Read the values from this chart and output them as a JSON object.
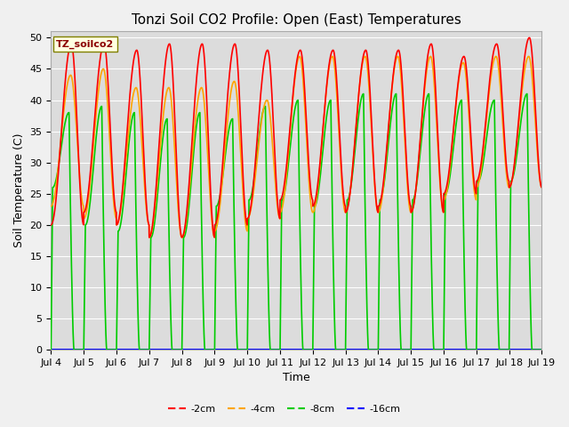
{
  "title": "Tonzi Soil CO2 Profile: Open (East) Temperatures",
  "xlabel": "Time",
  "ylabel": "Soil Temperature (C)",
  "ylim": [
    0,
    51
  ],
  "xlim": [
    0,
    15
  ],
  "x_tick_labels": [
    "Jul 4",
    "Jul 5",
    "Jul 6",
    "Jul 7",
    "Jul 8",
    "Jul 9",
    "Jul 10",
    "Jul 11",
    "Jul 12",
    "Jul 13",
    "Jul 14",
    "Jul 15",
    "Jul 16",
    "Jul 17",
    "Jul 18",
    "Jul 19"
  ],
  "yticks": [
    0,
    5,
    10,
    15,
    20,
    25,
    30,
    35,
    40,
    45,
    50
  ],
  "series_2cm": {
    "label": "-2cm",
    "color": "#ff0000",
    "daily_max": [
      49,
      49,
      48,
      49,
      49,
      49,
      48,
      48,
      48,
      48,
      48,
      49,
      47,
      49,
      50
    ],
    "daily_min": [
      20,
      22,
      20,
      18,
      18,
      20,
      21,
      24,
      23,
      22,
      23,
      22,
      25,
      27,
      26
    ]
  },
  "series_4cm": {
    "label": "-4cm",
    "color": "#ffa500",
    "daily_max": [
      44,
      45,
      42,
      42,
      42,
      43,
      40,
      47,
      47,
      47,
      47,
      47,
      46,
      47,
      47
    ],
    "daily_min": [
      23,
      21,
      20,
      18,
      18,
      19,
      21,
      22,
      22,
      22,
      22,
      22,
      24,
      26,
      26
    ]
  },
  "series_8cm": {
    "label": "-8cm",
    "color": "#00cc00",
    "daily_max": [
      38,
      39,
      38,
      37,
      38,
      37,
      39,
      40,
      40,
      41,
      41,
      41,
      40,
      40,
      41
    ],
    "daily_min_start": [
      26,
      20,
      19,
      18,
      18,
      23,
      24,
      24,
      23,
      24,
      24,
      24,
      25,
      27,
      27
    ]
  },
  "series_16cm": {
    "label": "-16cm",
    "color": "#0000ff"
  },
  "bg_color": "#dcdcdc",
  "grid_color": "#ffffff",
  "fig_facecolor": "#f0f0f0",
  "title_fontsize": 11,
  "axis_fontsize": 9,
  "tick_fontsize": 8,
  "legend_title": "TZ_soilco2",
  "legend_title_color": "#8b0000",
  "legend_bg": "#ffffe0",
  "legend_edge": "#808000",
  "bottom_legend_labels": [
    "-2cm",
    "-4cm",
    "-8cm",
    "-16cm"
  ],
  "bottom_legend_colors": [
    "#ff0000",
    "#ffa500",
    "#00cc00",
    "#0000ff"
  ]
}
